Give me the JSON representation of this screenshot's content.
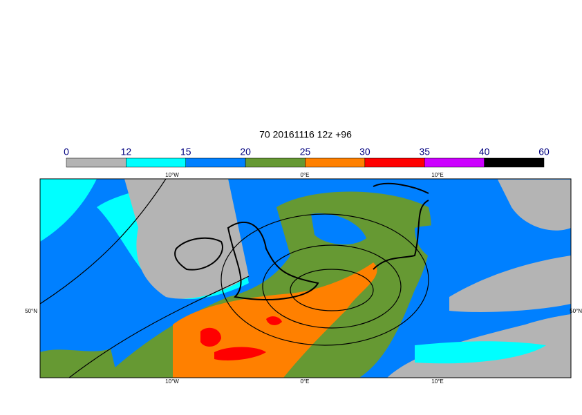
{
  "title": "70 20161116 12z +96",
  "colorbar": {
    "ticks": [
      0,
      12,
      15,
      20,
      25,
      30,
      35,
      40,
      60
    ],
    "colors": [
      "#b4b4b4",
      "#00ffff",
      "#0080ff",
      "#669933",
      "#ff8000",
      "#ff0000",
      "#cc00ff",
      "#000000"
    ]
  },
  "map": {
    "lon_labels": [
      "10°W",
      "0°E",
      "10°E"
    ],
    "lat_labels": [
      "50°N"
    ]
  }
}
